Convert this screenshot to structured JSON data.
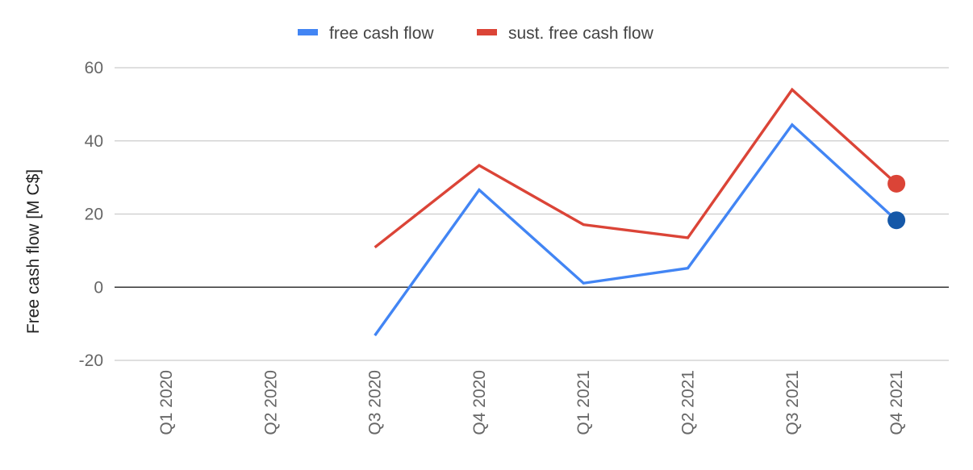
{
  "chart_data": {
    "type": "line",
    "title": "",
    "xlabel": "",
    "ylabel": "Free cash flow [M C$]",
    "categories": [
      "Q1 2020",
      "Q2 2020",
      "Q3 2020",
      "Q4 2020",
      "Q1 2021",
      "Q2 2021",
      "Q3 2021",
      "Q4 2021"
    ],
    "ylim": [
      -20,
      60
    ],
    "yticks": [
      "-20",
      "0",
      "20",
      "40",
      "60"
    ],
    "grid": true,
    "legend_position": "top-center",
    "series": [
      {
        "name": "free cash flow",
        "color": "#4285f4",
        "marker_color": "#1558a8",
        "values": [
          null,
          null,
          -13.2,
          26.6,
          1.1,
          5.2,
          44.4,
          18.3
        ],
        "last_point_marker": true
      },
      {
        "name": "sust. free cash flow",
        "color": "#db4437",
        "marker_color": "#db4437",
        "values": [
          null,
          null,
          10.9,
          33.3,
          17.1,
          13.5,
          54.0,
          28.3
        ],
        "last_point_marker": true
      }
    ]
  }
}
